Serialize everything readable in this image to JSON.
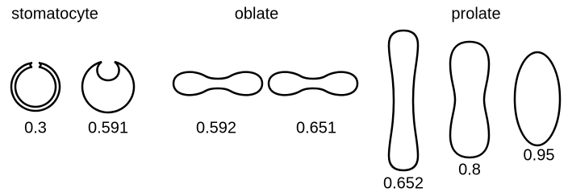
{
  "groups": [
    {
      "title": "stomatocyte",
      "shapes": [
        {
          "label": "0.3"
        },
        {
          "label": "0.591"
        }
      ]
    },
    {
      "title": "oblate",
      "shapes": [
        {
          "label": "0.592"
        },
        {
          "label": "0.651"
        }
      ]
    },
    {
      "title": "prolate",
      "shapes": [
        {
          "label": "0.652"
        },
        {
          "label": "0.8"
        },
        {
          "label": "0.95"
        }
      ]
    }
  ]
}
